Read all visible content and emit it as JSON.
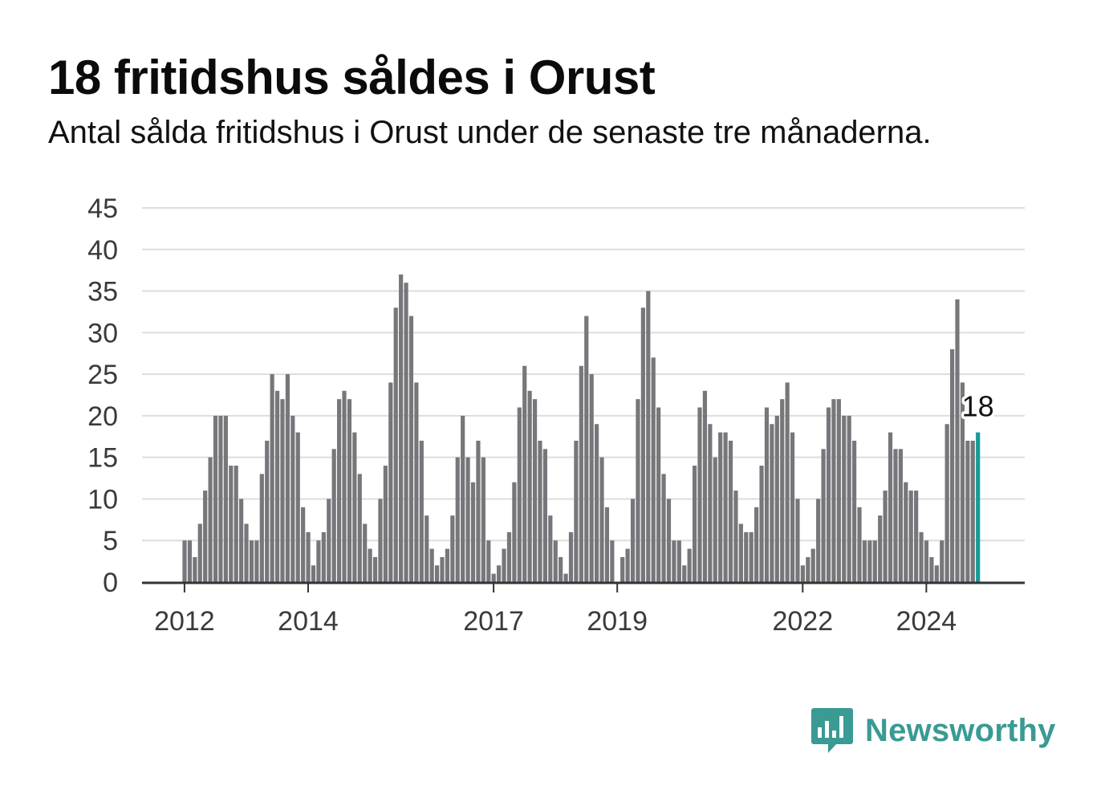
{
  "title": "18 fritidshus såldes i Orust",
  "subtitle": "Antal sålda fritidshus i Orust under de senaste tre månaderna.",
  "brand": {
    "name": "Newsworthy",
    "icon": "bar-chart-speech-bubble-icon",
    "color": "#3a9a94"
  },
  "colors": {
    "bar": "#77767b",
    "highlight": "#1a9a96",
    "grid": "#dddddd",
    "axis": "#333333"
  },
  "chart_data": {
    "type": "bar",
    "start": "2012-01",
    "x_ticks": [
      "2012",
      "2014",
      "2017",
      "2019",
      "2022",
      "2024"
    ],
    "y_ticks": [
      0,
      5,
      10,
      15,
      20,
      25,
      30,
      35,
      40,
      45
    ],
    "ylim": [
      0,
      45
    ],
    "grid": true,
    "values": [
      5,
      5,
      3,
      7,
      11,
      15,
      20,
      20,
      20,
      14,
      14,
      10,
      7,
      5,
      5,
      13,
      17,
      25,
      23,
      22,
      25,
      20,
      18,
      9,
      6,
      2,
      5,
      6,
      10,
      16,
      22,
      23,
      22,
      18,
      13,
      7,
      4,
      3,
      10,
      14,
      24,
      33,
      37,
      36,
      32,
      24,
      17,
      8,
      4,
      2,
      3,
      4,
      8,
      15,
      20,
      15,
      12,
      17,
      15,
      5,
      1,
      2,
      4,
      6,
      12,
      21,
      26,
      23,
      22,
      17,
      16,
      8,
      5,
      3,
      1,
      6,
      17,
      26,
      32,
      25,
      19,
      15,
      9,
      5,
      0,
      3,
      4,
      10,
      22,
      33,
      35,
      27,
      21,
      13,
      10,
      5,
      5,
      2,
      4,
      14,
      21,
      23,
      19,
      15,
      18,
      18,
      17,
      11,
      7,
      6,
      6,
      9,
      14,
      21,
      19,
      20,
      22,
      24,
      18,
      10,
      2,
      3,
      4,
      10,
      16,
      21,
      22,
      22,
      20,
      20,
      17,
      9,
      5,
      5,
      5,
      8,
      11,
      18,
      16,
      16,
      12,
      11,
      11,
      6,
      5,
      3,
      2,
      5,
      19,
      28,
      34,
      24,
      17,
      17,
      18
    ],
    "highlight": {
      "value": 18,
      "label": "18"
    }
  }
}
